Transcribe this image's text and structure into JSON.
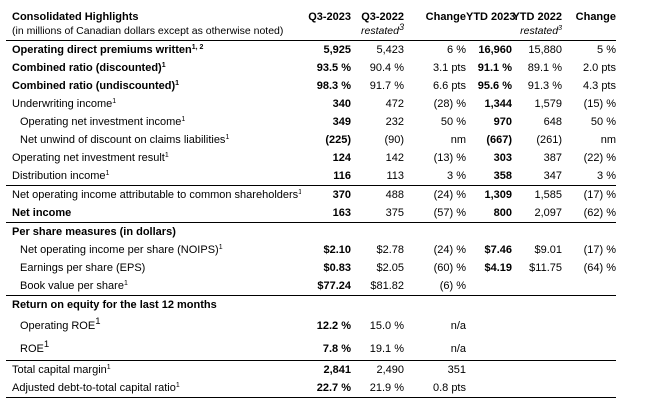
{
  "header": {
    "title": "Consolidated Highlights",
    "subtitle": "(in millions of Canadian dollars except as otherwise noted)",
    "columns": [
      {
        "key": "q3-2023",
        "label": "Q3-2023",
        "sub": "",
        "sub_sup": ""
      },
      {
        "key": "q3-2022",
        "label": "Q3-2022",
        "sub": "restated",
        "sub_sup": "3"
      },
      {
        "key": "change",
        "label": "Change",
        "sub": "",
        "sub_sup": ""
      },
      {
        "key": "ytd-2023",
        "label": "YTD 2023",
        "sub": "",
        "sub_sup": ""
      },
      {
        "key": "ytd-2022",
        "label": "YTD 2022",
        "sub": "restated",
        "sub_sup": "3"
      },
      {
        "key": "change-ytd",
        "label": "Change",
        "sub": "",
        "sub_sup": ""
      }
    ]
  },
  "table": {
    "column_keys": [
      "q3-2023",
      "q3-2022",
      "change",
      "ytd-2023",
      "ytd-2022",
      "change-ytd"
    ],
    "rows": [
      {
        "label": "Operating direct premiums written",
        "sup": "1, 2",
        "bold": true,
        "values": [
          "5,925",
          "5,423",
          "6 %",
          "16,960",
          "15,880",
          "5 %"
        ]
      },
      {
        "label": "Combined ratio (discounted)",
        "sup": "1",
        "bold": true,
        "values": [
          "93.5 %",
          "90.4 %",
          "3.1 pts",
          "91.1 %",
          "89.1 %",
          "2.0 pts"
        ]
      },
      {
        "label": "Combined ratio (undiscounted)",
        "sup": "1",
        "bold": true,
        "values": [
          "98.3 %",
          "91.7 %",
          "6.6 pts",
          "95.6 %",
          "91.3 %",
          "4.3 pts"
        ]
      },
      {
        "label": "Underwriting income",
        "sup": "1",
        "values": [
          "340",
          "472",
          "(28) %",
          "1,344",
          "1,579",
          "(15) %"
        ]
      },
      {
        "label": "Operating net investment income",
        "sup": "1",
        "indent": true,
        "values": [
          "349",
          "232",
          "50 %",
          "970",
          "648",
          "50 %"
        ]
      },
      {
        "label": "Net unwind of discount on claims liabilities",
        "sup": "1",
        "indent": true,
        "values": [
          "(225)",
          "(90)",
          "nm",
          "(667)",
          "(261)",
          "nm"
        ]
      },
      {
        "label": "Operating net investment result",
        "sup": "1",
        "values": [
          "124",
          "142",
          "(13) %",
          "303",
          "387",
          "(22) %"
        ]
      },
      {
        "label": "Distribution income",
        "sup": "1",
        "border": true,
        "values": [
          "116",
          "113",
          "3 %",
          "358",
          "347",
          "3 %"
        ]
      },
      {
        "label": "Net operating income attributable to common shareholders",
        "sup": "1",
        "values": [
          "370",
          "488",
          "(24) %",
          "1,309",
          "1,585",
          "(17) %"
        ]
      },
      {
        "label": "Net income",
        "bold": true,
        "border": true,
        "values": [
          "163",
          "375",
          "(57) %",
          "800",
          "2,097",
          "(62) %"
        ]
      },
      {
        "label": "Per share measures (in dollars)",
        "bold": true,
        "section": true,
        "values": [
          "",
          "",
          "",
          "",
          "",
          ""
        ]
      },
      {
        "label": "Net operating income per share (NOIPS)",
        "sup": "1",
        "indent": true,
        "values": [
          "$2.10",
          "$2.78",
          "(24) %",
          "$7.46",
          "$9.01",
          "(17) %"
        ]
      },
      {
        "label": "Earnings per share (EPS)",
        "indent": true,
        "values": [
          "$0.83",
          "$2.05",
          "(60) %",
          "$4.19",
          "$11.75",
          "(64) %"
        ]
      },
      {
        "label": "Book value per share",
        "sup": "1",
        "indent": true,
        "border": true,
        "values": [
          "$77.24",
          "$81.82",
          "(6) %",
          "",
          "",
          ""
        ]
      },
      {
        "label": "Return on equity for the last 12 months",
        "bold": true,
        "section": true,
        "values": [
          "",
          "",
          "",
          "",
          "",
          ""
        ]
      },
      {
        "label": "Operating ROE",
        "sup": "1",
        "big_sup": true,
        "indent": true,
        "tall": true,
        "values": [
          "12.2 %",
          "15.0 %",
          "n/a",
          "",
          "",
          ""
        ]
      },
      {
        "label": "ROE",
        "sup": "1",
        "big_sup": true,
        "indent": true,
        "tall": true,
        "border": true,
        "values": [
          "7.8 %",
          "19.1 %",
          "n/a",
          "",
          "",
          ""
        ]
      },
      {
        "label": "Total capital margin",
        "sup": "1",
        "values": [
          "2,841",
          "2,490",
          "351",
          "",
          "",
          ""
        ]
      },
      {
        "label": "Adjusted debt-to-total capital ratio",
        "sup": "1",
        "border": true,
        "values": [
          "22.7 %",
          "21.9 %",
          "0.8 pts",
          "",
          "",
          ""
        ]
      }
    ]
  }
}
